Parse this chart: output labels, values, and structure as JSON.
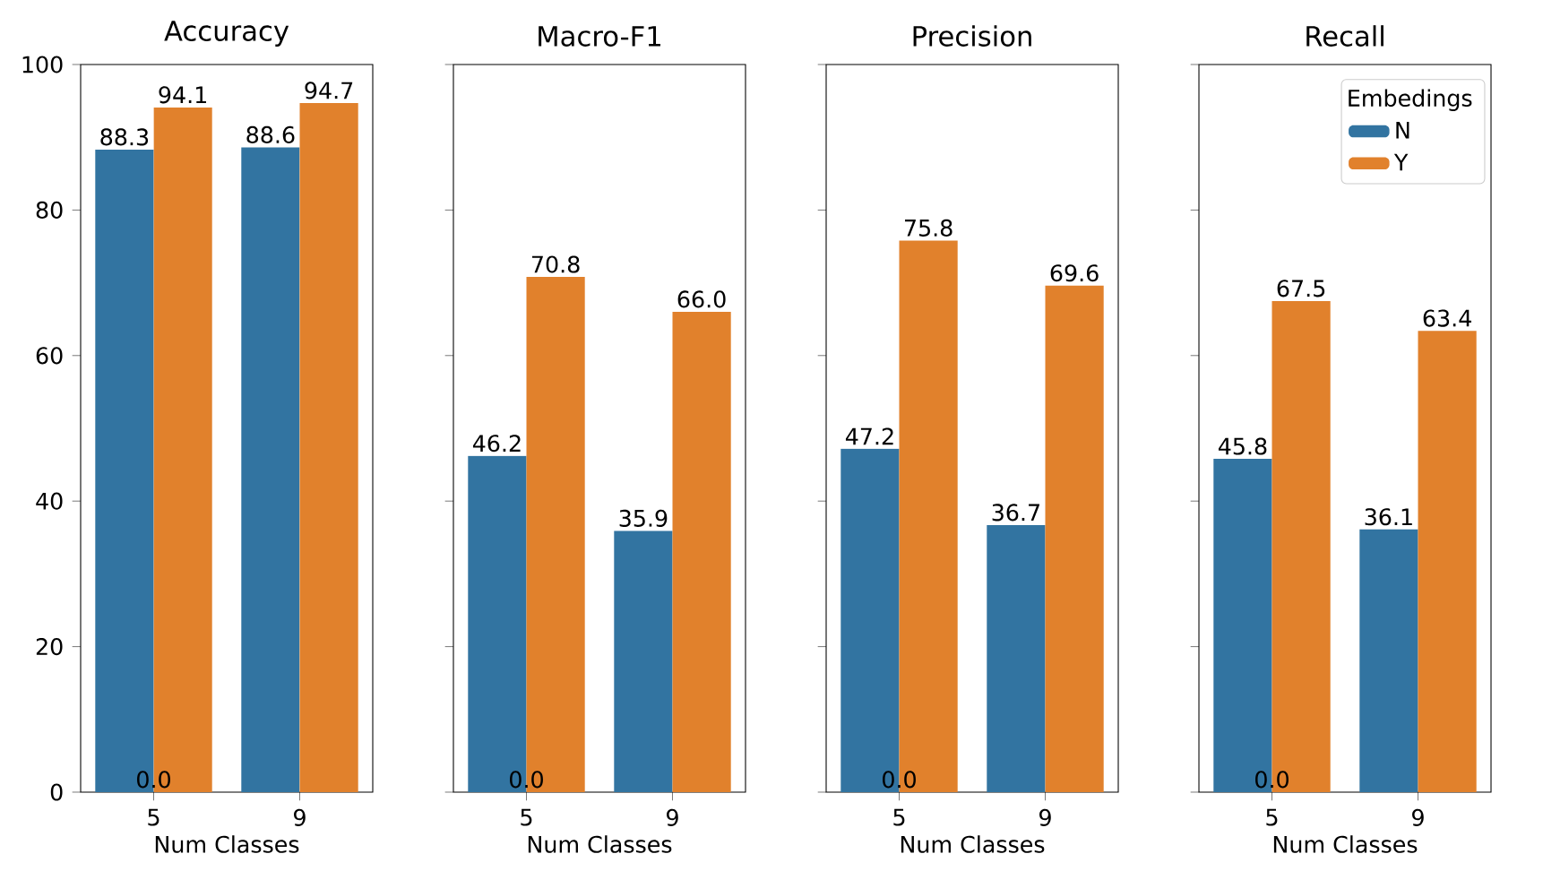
{
  "chart_data": [
    {
      "type": "bar",
      "title": "Accuracy",
      "xlabel": "Num Classes",
      "categories": [
        "5",
        "9"
      ],
      "series": [
        {
          "color": "#3274a1",
          "values": [
            88.3,
            88.6
          ],
          "value_labels": [
            "88.3",
            "88.6"
          ]
        },
        {
          "color": "#e1812c",
          "values": [
            94.1,
            94.7
          ],
          "value_labels": [
            "94.1",
            "94.7"
          ]
        }
      ],
      "ylim": [
        0,
        100
      ],
      "yticks": [
        0,
        20,
        40,
        60,
        80,
        100
      ],
      "legend": false,
      "annotations": [
        {
          "text": "0.0",
          "x": "5",
          "y": 0
        }
      ]
    },
    {
      "type": "bar",
      "title": "Macro-F1",
      "xlabel": "Num Classes",
      "categories": [
        "5",
        "9"
      ],
      "series": [
        {
          "color": "#3274a1",
          "values": [
            46.2,
            35.9
          ],
          "value_labels": [
            "46.2",
            "35.9"
          ]
        },
        {
          "color": "#e1812c",
          "values": [
            70.8,
            66.0
          ],
          "value_labels": [
            "70.8",
            "66.0"
          ]
        }
      ],
      "ylim": [
        0,
        100
      ],
      "yticks": [
        0,
        20,
        40,
        60,
        80,
        100
      ],
      "tick_labels": "x",
      "legend": false,
      "annotations": [
        {
          "text": "0.0",
          "x": "5",
          "y": 0
        }
      ]
    },
    {
      "type": "bar",
      "title": "Precision",
      "xlabel": "Num Classes",
      "categories": [
        "5",
        "9"
      ],
      "series": [
        {
          "color": "#3274a1",
          "values": [
            47.2,
            36.7
          ],
          "value_labels": [
            "47.2",
            "36.7"
          ]
        },
        {
          "color": "#e1812c",
          "values": [
            75.8,
            69.6
          ],
          "value_labels": [
            "75.8",
            "69.6"
          ]
        }
      ],
      "ylim": [
        0,
        100
      ],
      "yticks": [
        0,
        20,
        40,
        60,
        80,
        100
      ],
      "tick_labels": "x",
      "legend": false,
      "annotations": [
        {
          "text": "0.0",
          "x": "5",
          "y": 0
        }
      ]
    },
    {
      "type": "bar",
      "title": "Recall",
      "xlabel": "Num Classes",
      "categories": [
        "5",
        "9"
      ],
      "series": [
        {
          "name": "N",
          "color": "#3274a1",
          "values": [
            45.8,
            36.1
          ],
          "value_labels": [
            "45.8",
            "36.1"
          ]
        },
        {
          "name": "Y",
          "color": "#e1812c",
          "values": [
            67.5,
            63.4
          ],
          "value_labels": [
            "67.5",
            "63.4"
          ]
        }
      ],
      "ylim": [
        0,
        100
      ],
      "yticks": [
        0,
        20,
        40,
        60,
        80,
        100
      ],
      "tick_labels": "x",
      "legend": "top right",
      "legend_title": "Embedings",
      "annotations": [
        {
          "text": "0.0",
          "x": "5",
          "y": 0
        }
      ]
    }
  ]
}
